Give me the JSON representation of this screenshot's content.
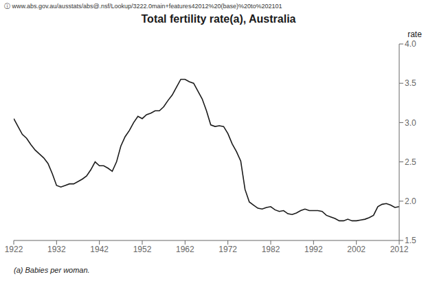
{
  "chart_data": {
    "type": "line",
    "title": "Total fertility rate(a), Australia",
    "y_label": "rate",
    "annotations": [
      "ⓘ  www.abs.gov.au/ausstats/abs@.nsf/Lookup/3222.0main+features42012%20(base)%20to%202101",
      "(a) Babies per woman."
    ],
    "x": [
      1922,
      1923,
      1924,
      1925,
      1926,
      1927,
      1928,
      1929,
      1930,
      1931,
      1932,
      1933,
      1934,
      1935,
      1936,
      1937,
      1938,
      1939,
      1940,
      1941,
      1942,
      1943,
      1944,
      1945,
      1946,
      1947,
      1948,
      1949,
      1950,
      1951,
      1952,
      1953,
      1954,
      1955,
      1956,
      1957,
      1958,
      1959,
      1960,
      1961,
      1962,
      1963,
      1964,
      1965,
      1966,
      1967,
      1968,
      1969,
      1970,
      1971,
      1972,
      1973,
      1974,
      1975,
      1976,
      1977,
      1978,
      1979,
      1980,
      1981,
      1982,
      1983,
      1984,
      1985,
      1986,
      1987,
      1988,
      1989,
      1990,
      1991,
      1992,
      1993,
      1994,
      1995,
      1996,
      1997,
      1998,
      1999,
      2000,
      2001,
      2002,
      2003,
      2004,
      2005,
      2006,
      2007,
      2008,
      2009,
      2010,
      2011,
      2012
    ],
    "values": [
      3.05,
      2.95,
      2.85,
      2.8,
      2.72,
      2.65,
      2.6,
      2.55,
      2.48,
      2.35,
      2.2,
      2.18,
      2.2,
      2.22,
      2.22,
      2.25,
      2.28,
      2.32,
      2.4,
      2.5,
      2.45,
      2.45,
      2.42,
      2.38,
      2.5,
      2.7,
      2.82,
      2.9,
      3.0,
      3.08,
      3.05,
      3.1,
      3.12,
      3.15,
      3.15,
      3.2,
      3.28,
      3.35,
      3.45,
      3.55,
      3.55,
      3.52,
      3.5,
      3.4,
      3.3,
      3.15,
      2.97,
      2.95,
      2.96,
      2.95,
      2.86,
      2.73,
      2.63,
      2.51,
      2.15,
      1.99,
      1.95,
      1.91,
      1.9,
      1.92,
      1.93,
      1.89,
      1.87,
      1.88,
      1.84,
      1.83,
      1.85,
      1.88,
      1.9,
      1.88,
      1.88,
      1.88,
      1.87,
      1.82,
      1.8,
      1.78,
      1.75,
      1.75,
      1.77,
      1.75,
      1.75,
      1.76,
      1.77,
      1.79,
      1.82,
      1.93,
      1.96,
      1.97,
      1.95,
      1.92,
      1.93
    ],
    "color": "#1a1a1a",
    "xlim": [
      1922,
      2012
    ],
    "ylim": [
      1.5,
      4.0
    ],
    "xticks": [
      1922,
      1932,
      1942,
      1952,
      1962,
      1972,
      1982,
      1992,
      2002,
      2012
    ],
    "yticks": [
      1.5,
      {
        "value": 2.0,
        "label": "2.0"
      },
      2.5,
      {
        "value": 3.0,
        "label": "3.0"
      },
      3.5,
      {
        "value": 4.0,
        "label": "4.0"
      }
    ],
    "grid": false
  }
}
